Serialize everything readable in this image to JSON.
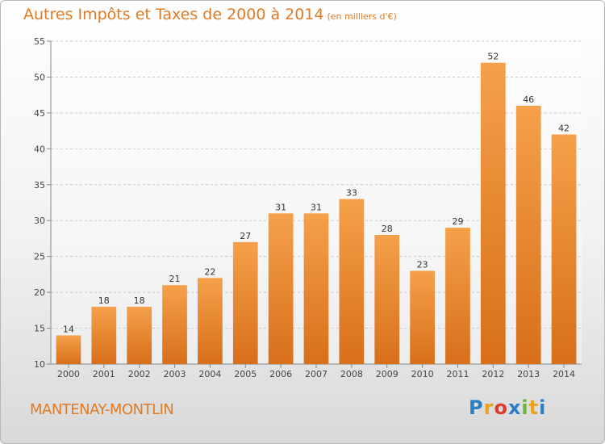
{
  "title": "Autres Impôts et Taxes de 2000 à 2014",
  "subtitle": "(en milliers d'€)",
  "town": "MANTENAY-MONTLIN",
  "brand": {
    "letters": [
      "P",
      "r",
      "o",
      "x",
      "i",
      "t",
      "i"
    ],
    "colors": [
      "#2d7fc4",
      "#e8a21c",
      "#e03a2a",
      "#2d7fc4",
      "#6db43e",
      "#e8a21c",
      "#2d7fc4"
    ]
  },
  "chart_data": {
    "type": "bar",
    "categories": [
      "2000",
      "2001",
      "2002",
      "2003",
      "2004",
      "2005",
      "2006",
      "2007",
      "2008",
      "2009",
      "2010",
      "2011",
      "2012",
      "2013",
      "2014"
    ],
    "values": [
      14,
      18,
      18,
      21,
      22,
      27,
      31,
      31,
      33,
      28,
      23,
      29,
      52,
      46,
      42
    ],
    "ylim": [
      10,
      55
    ],
    "yticks": [
      10,
      15,
      20,
      25,
      30,
      35,
      40,
      45,
      50,
      55
    ],
    "grid": true,
    "bar_color_top": "#f5a04a",
    "bar_color_bottom": "#d86f1a"
  }
}
